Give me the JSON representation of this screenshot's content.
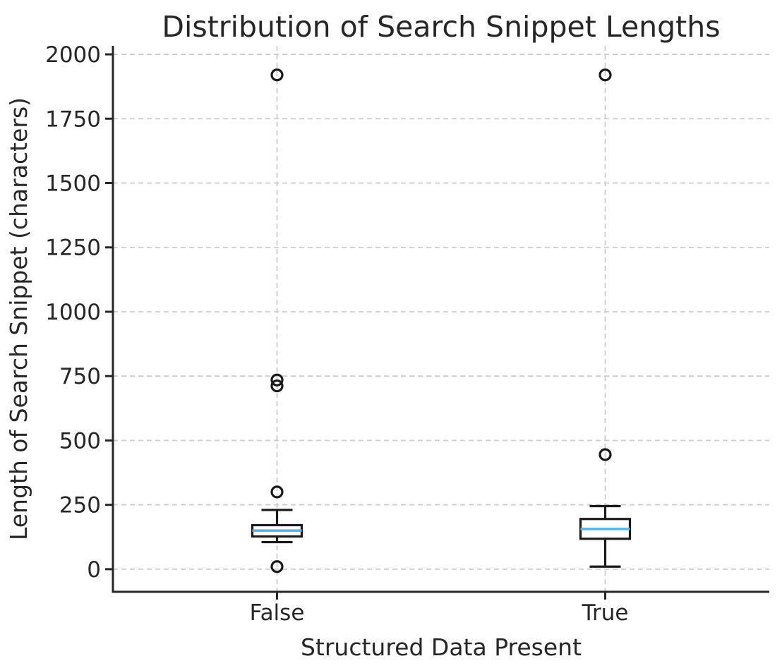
{
  "chart_data": {
    "type": "boxplot",
    "title": "Distribution of Search Snippet Lengths",
    "xlabel": "Structured Data Present",
    "ylabel": "Length of Search Snippet (characters)",
    "categories": [
      "False",
      "True"
    ],
    "yticks": [
      0,
      250,
      500,
      750,
      1000,
      1250,
      1500,
      1750,
      2000
    ],
    "ylim": [
      -88,
      2033
    ],
    "grid": "dashed, light gray, horizontal at each ytick and vertical at each category",
    "legend": "none",
    "boxes": [
      {
        "category": "False",
        "whisker_low": 105,
        "q1": 127,
        "median": 150,
        "q3": 171,
        "whisker_high": 230,
        "outliers": [
          10,
          300,
          712,
          735,
          1920
        ]
      },
      {
        "category": "True",
        "whisker_low": 10,
        "q1": 118,
        "median": 156,
        "q3": 195,
        "whisker_high": 245,
        "outliers": [
          445,
          1920
        ]
      }
    ],
    "colors": {
      "box_edge": "#1a1a1a",
      "median_line": "#56b4e9",
      "grid_line": "#cccccc",
      "spine": "#262626",
      "text": "#262626",
      "background": "#ffffff"
    }
  }
}
